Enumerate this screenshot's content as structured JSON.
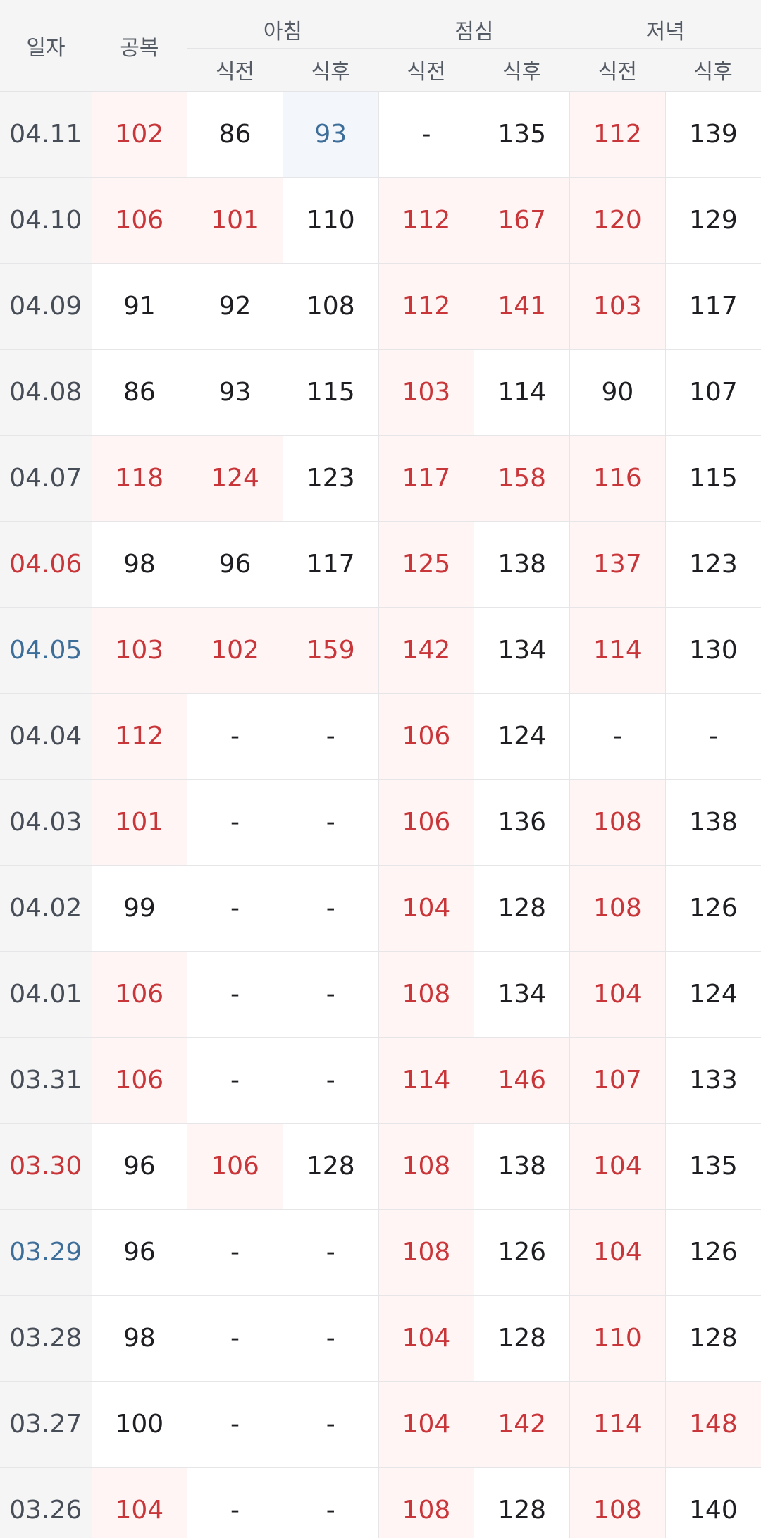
{
  "header": {
    "date": "일자",
    "fasting": "공복",
    "meals": [
      {
        "label": "아침",
        "before": "식전",
        "after": "식후"
      },
      {
        "label": "점심",
        "before": "식전",
        "after": "식후"
      },
      {
        "label": "저녁",
        "before": "식전",
        "after": "식후"
      }
    ]
  },
  "colors": {
    "high": "#c9363a",
    "high_bg": "#fff5f5",
    "low": "#3d6d99",
    "low_bg": "#f3f7fb",
    "weekend_sat": "#3d6d99",
    "weekend_sun": "#c9363a"
  },
  "rows": [
    {
      "date": "04.11",
      "date_style": "normal",
      "cells": [
        {
          "v": "102",
          "s": "high"
        },
        {
          "v": "86",
          "s": "normal"
        },
        {
          "v": "93",
          "s": "low"
        },
        {
          "v": "-",
          "s": "none"
        },
        {
          "v": "135",
          "s": "normal"
        },
        {
          "v": "112",
          "s": "high"
        },
        {
          "v": "139",
          "s": "normal"
        }
      ]
    },
    {
      "date": "04.10",
      "date_style": "normal",
      "cells": [
        {
          "v": "106",
          "s": "high"
        },
        {
          "v": "101",
          "s": "high"
        },
        {
          "v": "110",
          "s": "normal"
        },
        {
          "v": "112",
          "s": "high"
        },
        {
          "v": "167",
          "s": "high"
        },
        {
          "v": "120",
          "s": "high"
        },
        {
          "v": "129",
          "s": "normal"
        }
      ]
    },
    {
      "date": "04.09",
      "date_style": "normal",
      "cells": [
        {
          "v": "91",
          "s": "normal"
        },
        {
          "v": "92",
          "s": "normal"
        },
        {
          "v": "108",
          "s": "normal"
        },
        {
          "v": "112",
          "s": "high"
        },
        {
          "v": "141",
          "s": "high"
        },
        {
          "v": "103",
          "s": "high"
        },
        {
          "v": "117",
          "s": "normal"
        }
      ]
    },
    {
      "date": "04.08",
      "date_style": "normal",
      "cells": [
        {
          "v": "86",
          "s": "normal"
        },
        {
          "v": "93",
          "s": "normal"
        },
        {
          "v": "115",
          "s": "normal"
        },
        {
          "v": "103",
          "s": "high"
        },
        {
          "v": "114",
          "s": "normal"
        },
        {
          "v": "90",
          "s": "normal"
        },
        {
          "v": "107",
          "s": "normal"
        }
      ]
    },
    {
      "date": "04.07",
      "date_style": "normal",
      "cells": [
        {
          "v": "118",
          "s": "high"
        },
        {
          "v": "124",
          "s": "high"
        },
        {
          "v": "123",
          "s": "normal"
        },
        {
          "v": "117",
          "s": "high"
        },
        {
          "v": "158",
          "s": "high"
        },
        {
          "v": "116",
          "s": "high"
        },
        {
          "v": "115",
          "s": "normal"
        }
      ]
    },
    {
      "date": "04.06",
      "date_style": "red",
      "cells": [
        {
          "v": "98",
          "s": "normal"
        },
        {
          "v": "96",
          "s": "normal"
        },
        {
          "v": "117",
          "s": "normal"
        },
        {
          "v": "125",
          "s": "high"
        },
        {
          "v": "138",
          "s": "normal"
        },
        {
          "v": "137",
          "s": "high"
        },
        {
          "v": "123",
          "s": "normal"
        }
      ]
    },
    {
      "date": "04.05",
      "date_style": "blue",
      "cells": [
        {
          "v": "103",
          "s": "high"
        },
        {
          "v": "102",
          "s": "high"
        },
        {
          "v": "159",
          "s": "high"
        },
        {
          "v": "142",
          "s": "high"
        },
        {
          "v": "134",
          "s": "normal"
        },
        {
          "v": "114",
          "s": "high"
        },
        {
          "v": "130",
          "s": "normal"
        }
      ]
    },
    {
      "date": "04.04",
      "date_style": "normal",
      "cells": [
        {
          "v": "112",
          "s": "high"
        },
        {
          "v": "-",
          "s": "none"
        },
        {
          "v": "-",
          "s": "none"
        },
        {
          "v": "106",
          "s": "high"
        },
        {
          "v": "124",
          "s": "normal"
        },
        {
          "v": "-",
          "s": "none"
        },
        {
          "v": "-",
          "s": "none"
        }
      ]
    },
    {
      "date": "04.03",
      "date_style": "normal",
      "cells": [
        {
          "v": "101",
          "s": "high"
        },
        {
          "v": "-",
          "s": "none"
        },
        {
          "v": "-",
          "s": "none"
        },
        {
          "v": "106",
          "s": "high"
        },
        {
          "v": "136",
          "s": "normal"
        },
        {
          "v": "108",
          "s": "high"
        },
        {
          "v": "138",
          "s": "normal"
        }
      ]
    },
    {
      "date": "04.02",
      "date_style": "normal",
      "cells": [
        {
          "v": "99",
          "s": "normal"
        },
        {
          "v": "-",
          "s": "none"
        },
        {
          "v": "-",
          "s": "none"
        },
        {
          "v": "104",
          "s": "high"
        },
        {
          "v": "128",
          "s": "normal"
        },
        {
          "v": "108",
          "s": "high"
        },
        {
          "v": "126",
          "s": "normal"
        }
      ]
    },
    {
      "date": "04.01",
      "date_style": "normal",
      "cells": [
        {
          "v": "106",
          "s": "high"
        },
        {
          "v": "-",
          "s": "none"
        },
        {
          "v": "-",
          "s": "none"
        },
        {
          "v": "108",
          "s": "high"
        },
        {
          "v": "134",
          "s": "normal"
        },
        {
          "v": "104",
          "s": "high"
        },
        {
          "v": "124",
          "s": "normal"
        }
      ]
    },
    {
      "date": "03.31",
      "date_style": "normal",
      "cells": [
        {
          "v": "106",
          "s": "high"
        },
        {
          "v": "-",
          "s": "none"
        },
        {
          "v": "-",
          "s": "none"
        },
        {
          "v": "114",
          "s": "high"
        },
        {
          "v": "146",
          "s": "high"
        },
        {
          "v": "107",
          "s": "high"
        },
        {
          "v": "133",
          "s": "normal"
        }
      ]
    },
    {
      "date": "03.30",
      "date_style": "red",
      "cells": [
        {
          "v": "96",
          "s": "normal"
        },
        {
          "v": "106",
          "s": "high"
        },
        {
          "v": "128",
          "s": "normal"
        },
        {
          "v": "108",
          "s": "high"
        },
        {
          "v": "138",
          "s": "normal"
        },
        {
          "v": "104",
          "s": "high"
        },
        {
          "v": "135",
          "s": "normal"
        }
      ]
    },
    {
      "date": "03.29",
      "date_style": "blue",
      "cells": [
        {
          "v": "96",
          "s": "normal"
        },
        {
          "v": "-",
          "s": "none"
        },
        {
          "v": "-",
          "s": "none"
        },
        {
          "v": "108",
          "s": "high"
        },
        {
          "v": "126",
          "s": "normal"
        },
        {
          "v": "104",
          "s": "high"
        },
        {
          "v": "126",
          "s": "normal"
        }
      ]
    },
    {
      "date": "03.28",
      "date_style": "normal",
      "cells": [
        {
          "v": "98",
          "s": "normal"
        },
        {
          "v": "-",
          "s": "none"
        },
        {
          "v": "-",
          "s": "none"
        },
        {
          "v": "104",
          "s": "high"
        },
        {
          "v": "128",
          "s": "normal"
        },
        {
          "v": "110",
          "s": "high"
        },
        {
          "v": "128",
          "s": "normal"
        }
      ]
    },
    {
      "date": "03.27",
      "date_style": "normal",
      "cells": [
        {
          "v": "100",
          "s": "normal"
        },
        {
          "v": "-",
          "s": "none"
        },
        {
          "v": "-",
          "s": "none"
        },
        {
          "v": "104",
          "s": "high"
        },
        {
          "v": "142",
          "s": "high"
        },
        {
          "v": "114",
          "s": "high"
        },
        {
          "v": "148",
          "s": "high"
        }
      ]
    },
    {
      "date": "03.26",
      "date_style": "normal",
      "cells": [
        {
          "v": "104",
          "s": "high"
        },
        {
          "v": "-",
          "s": "none"
        },
        {
          "v": "-",
          "s": "none"
        },
        {
          "v": "108",
          "s": "high"
        },
        {
          "v": "128",
          "s": "normal"
        },
        {
          "v": "108",
          "s": "high"
        },
        {
          "v": "140",
          "s": "normal"
        }
      ]
    }
  ]
}
